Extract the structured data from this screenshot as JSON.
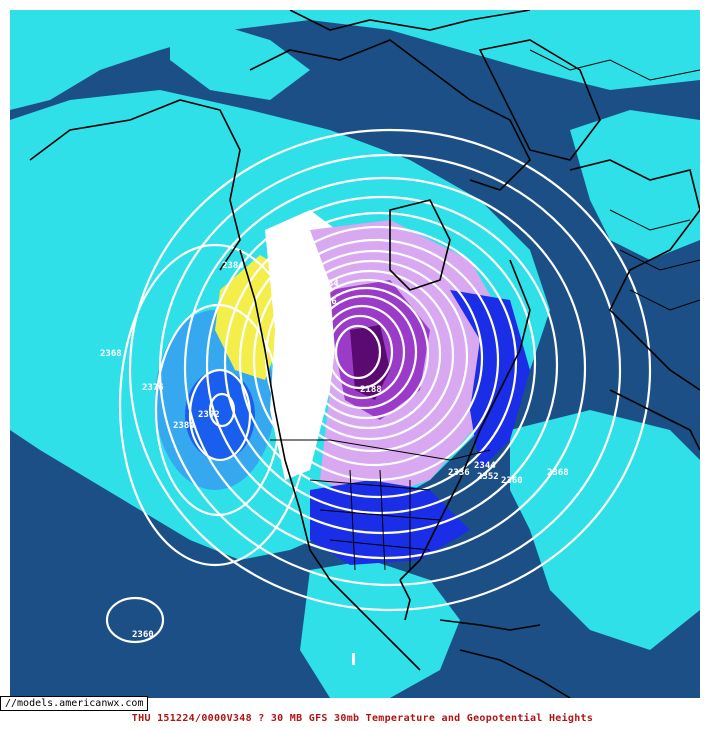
{
  "map": {
    "url": "//models.americanwx.com",
    "caption": "THU 151224/0000V348  ? 30 MB GFS 30mb Temperature and Geopotential Heights",
    "colors": {
      "ocean_dark": "#1b4f86",
      "light_cyan": "#30e0e8",
      "medium_blue": "#35a8f0",
      "bright_blue": "#1a5ef0",
      "deep_blue": "#1a2ee8",
      "yellow": "#f4ee4a",
      "white_band": "#ffffff",
      "lavender": "#d8a8f0",
      "purple": "#9a3cc8",
      "dark_purple": "#5a0a70",
      "contour": "#ffffff",
      "coast": "#000000",
      "caption": "#b01414"
    },
    "contour_labels": [
      {
        "text": "2368",
        "name": "label-2368-west"
      },
      {
        "text": "2376",
        "name": "label-2376"
      },
      {
        "text": "2392",
        "name": "label-2392"
      },
      {
        "text": "2384",
        "name": "label-2384"
      },
      {
        "text": "2368",
        "name": "label-2368-east"
      },
      {
        "text": "2360",
        "name": "label-2360-east"
      },
      {
        "text": "2352",
        "name": "label-2352"
      },
      {
        "text": "2344",
        "name": "label-2344"
      },
      {
        "text": "2336",
        "name": "label-2336"
      },
      {
        "text": "2184",
        "name": "label-2184"
      },
      {
        "text": "2176",
        "name": "label-2176"
      },
      {
        "text": "2188",
        "name": "label-2188"
      },
      {
        "text": "2360",
        "name": "label-2360-south"
      },
      {
        "text": "2384",
        "name": "label-2384-north"
      }
    ]
  }
}
